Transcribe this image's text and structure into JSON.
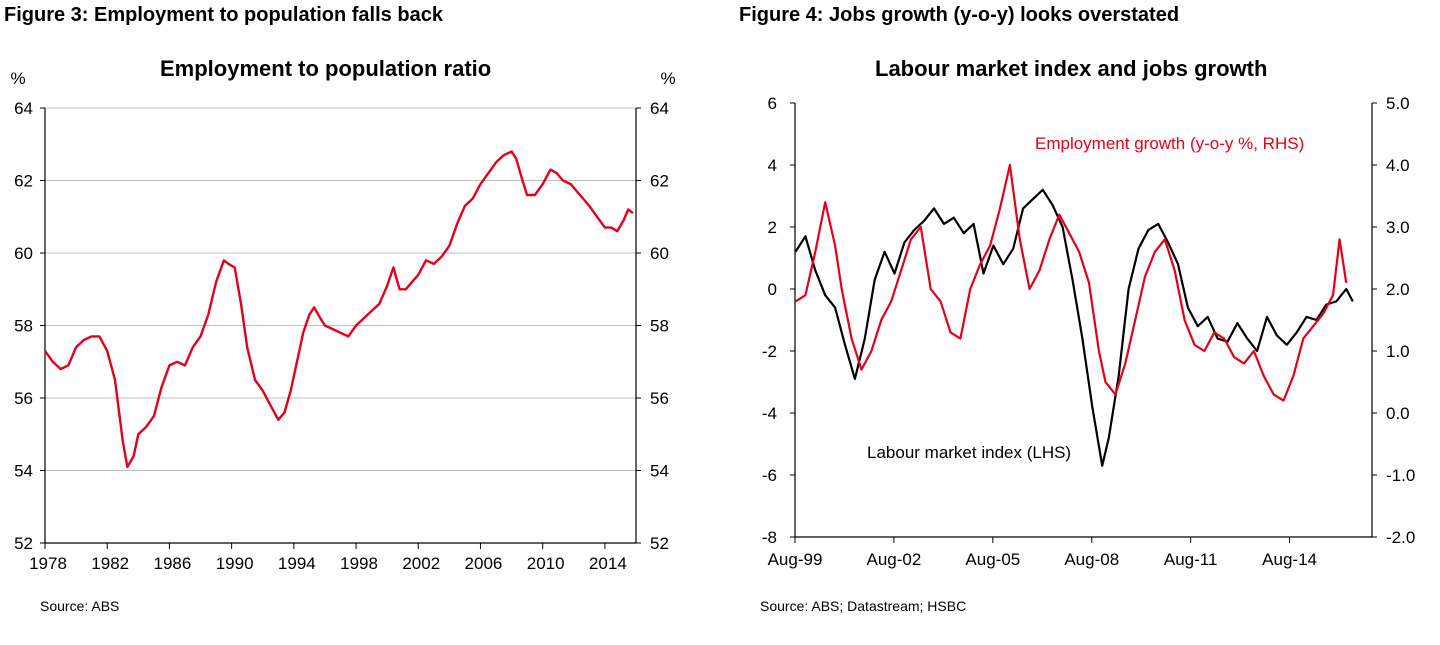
{
  "left": {
    "figure_title": "Figure 3: Employment to population falls back",
    "source": "Source: ABS"
  },
  "right": {
    "figure_title": "Figure 4: Jobs growth (y-o-y) looks overstated",
    "source": "Source: ABS; Datastream; HSBC"
  },
  "chart_data": [
    {
      "type": "line",
      "title": "Employment to population ratio",
      "y_unit_left": "%",
      "y_unit_right": "%",
      "ylim": [
        52,
        64
      ],
      "yticks": [
        52,
        54,
        56,
        58,
        60,
        62,
        64
      ],
      "xlim": [
        1978,
        2016
      ],
      "xticks": [
        1978,
        1982,
        1986,
        1990,
        1994,
        1998,
        2002,
        2006,
        2010,
        2014
      ],
      "grid": "horizontal",
      "colors": {
        "series": "#e3001b",
        "grid": "#bfbfbf",
        "axis": "#000000"
      },
      "series": [
        {
          "x": [
            1978.0,
            1978.5,
            1979.0,
            1979.5,
            1980.0,
            1980.5,
            1981.0,
            1981.5,
            1982.0,
            1982.5,
            1983.0,
            1983.3,
            1983.7,
            1984.0,
            1984.5,
            1985.0,
            1985.5,
            1986.0,
            1986.5,
            1987.0,
            1987.5,
            1988.0,
            1988.5,
            1989.0,
            1989.5,
            1989.8,
            1990.2,
            1990.6,
            1991.0,
            1991.5,
            1992.0,
            1992.5,
            1993.0,
            1993.4,
            1993.8,
            1994.2,
            1994.6,
            1995.0,
            1995.3,
            1995.7,
            1996.0,
            1996.5,
            1997.0,
            1997.5,
            1998.0,
            1998.5,
            1999.0,
            1999.5,
            2000.0,
            2000.4,
            2000.8,
            2001.2,
            2001.6,
            2002.0,
            2002.5,
            2003.0,
            2003.5,
            2004.0,
            2004.5,
            2005.0,
            2005.5,
            2006.0,
            2006.5,
            2007.0,
            2007.5,
            2008.0,
            2008.3,
            2008.7,
            2009.0,
            2009.5,
            2010.0,
            2010.5,
            2010.9,
            2011.3,
            2011.8,
            2012.2,
            2012.6,
            2013.0,
            2013.5,
            2014.0,
            2014.4,
            2014.8,
            2015.2,
            2015.5,
            2015.8
          ],
          "values": [
            57.3,
            57.0,
            56.8,
            56.9,
            57.4,
            57.6,
            57.7,
            57.7,
            57.3,
            56.5,
            54.8,
            54.1,
            54.4,
            55.0,
            55.2,
            55.5,
            56.3,
            56.9,
            57.0,
            56.9,
            57.4,
            57.7,
            58.3,
            59.2,
            59.8,
            59.7,
            59.6,
            58.6,
            57.4,
            56.5,
            56.2,
            55.8,
            55.4,
            55.6,
            56.2,
            57.0,
            57.8,
            58.3,
            58.5,
            58.2,
            58.0,
            57.9,
            57.8,
            57.7,
            58.0,
            58.2,
            58.4,
            58.6,
            59.1,
            59.6,
            59.0,
            59.0,
            59.2,
            59.4,
            59.8,
            59.7,
            59.9,
            60.2,
            60.8,
            61.3,
            61.5,
            61.9,
            62.2,
            62.5,
            62.7,
            62.8,
            62.6,
            62.0,
            61.6,
            61.6,
            61.9,
            62.3,
            62.2,
            62.0,
            61.9,
            61.7,
            61.5,
            61.3,
            61.0,
            60.7,
            60.7,
            60.6,
            60.9,
            61.2,
            61.1
          ]
        }
      ]
    },
    {
      "type": "line",
      "title": "Labour market index and jobs growth",
      "ylim_left": [
        -8,
        6
      ],
      "yticks_left": [
        -8,
        -6,
        -4,
        -2,
        0,
        2,
        4,
        6
      ],
      "ylim_right": [
        -2.0,
        5.0
      ],
      "yticks_right": [
        "-2.0",
        "-1.0",
        "0.0",
        "1.0",
        "2.0",
        "3.0",
        "4.0",
        "5.0"
      ],
      "xlim": [
        "Aug-99",
        "Feb-17"
      ],
      "xticks": [
        "Aug-99",
        "Aug-02",
        "Aug-05",
        "Aug-08",
        "Aug-11",
        "Aug-14"
      ],
      "grid": "none",
      "series": [
        {
          "name": "Labour market index (LHS)",
          "color": "#000000",
          "axis": "left",
          "x": [
            1999.6,
            1999.9,
            2000.2,
            2000.5,
            2000.8,
            2001.1,
            2001.4,
            2001.7,
            2002.0,
            2002.3,
            2002.6,
            2002.9,
            2003.2,
            2003.5,
            2003.8,
            2004.1,
            2004.4,
            2004.7,
            2005.0,
            2005.3,
            2005.6,
            2005.9,
            2006.2,
            2006.5,
            2006.8,
            2007.1,
            2007.4,
            2007.7,
            2008.0,
            2008.3,
            2008.6,
            2008.9,
            2009.1,
            2009.4,
            2009.7,
            2010.0,
            2010.3,
            2010.6,
            2010.9,
            2011.2,
            2011.5,
            2011.8,
            2012.1,
            2012.4,
            2012.7,
            2013.0,
            2013.3,
            2013.6,
            2013.9,
            2014.2,
            2014.5,
            2014.8,
            2015.1,
            2015.4,
            2015.7,
            2016.0,
            2016.3,
            2016.5
          ],
          "values": [
            1.2,
            1.7,
            0.6,
            -0.2,
            -0.6,
            -1.8,
            -2.9,
            -1.6,
            0.3,
            1.2,
            0.5,
            1.5,
            1.9,
            2.2,
            2.6,
            2.1,
            2.3,
            1.8,
            2.1,
            0.5,
            1.4,
            0.8,
            1.3,
            2.6,
            2.9,
            3.2,
            2.7,
            2.0,
            0.3,
            -1.6,
            -3.8,
            -5.7,
            -4.8,
            -2.8,
            0.0,
            1.3,
            1.9,
            2.1,
            1.5,
            0.8,
            -0.6,
            -1.2,
            -0.9,
            -1.6,
            -1.7,
            -1.1,
            -1.6,
            -2.0,
            -0.9,
            -1.5,
            -1.8,
            -1.4,
            -0.9,
            -1.0,
            -0.5,
            -0.4,
            0.0,
            -0.4
          ]
        },
        {
          "name": "Employment growth (y-o-y %, RHS)",
          "color": "#e3001b",
          "axis": "right",
          "x": [
            1999.6,
            1999.9,
            2000.2,
            2000.5,
            2000.8,
            2001.0,
            2001.3,
            2001.6,
            2001.9,
            2002.2,
            2002.5,
            2002.8,
            2003.1,
            2003.4,
            2003.7,
            2004.0,
            2004.3,
            2004.6,
            2004.9,
            2005.2,
            2005.5,
            2005.8,
            2006.1,
            2006.4,
            2006.7,
            2007.0,
            2007.3,
            2007.6,
            2007.9,
            2008.2,
            2008.5,
            2008.8,
            2009.0,
            2009.3,
            2009.6,
            2009.9,
            2010.2,
            2010.5,
            2010.8,
            2011.1,
            2011.4,
            2011.7,
            2012.0,
            2012.3,
            2012.6,
            2012.9,
            2013.2,
            2013.5,
            2013.8,
            2014.1,
            2014.4,
            2014.7,
            2015.0,
            2015.3,
            2015.6,
            2015.9,
            2016.1,
            2016.3
          ],
          "values": [
            1.8,
            1.9,
            2.6,
            3.4,
            2.7,
            2.0,
            1.2,
            0.7,
            1.0,
            1.5,
            1.8,
            2.3,
            2.8,
            3.0,
            2.0,
            1.8,
            1.3,
            1.2,
            2.0,
            2.4,
            2.7,
            3.3,
            4.0,
            2.8,
            2.0,
            2.3,
            2.8,
            3.2,
            2.9,
            2.6,
            2.1,
            1.0,
            0.5,
            0.3,
            0.8,
            1.5,
            2.2,
            2.6,
            2.8,
            2.3,
            1.5,
            1.1,
            1.0,
            1.3,
            1.2,
            0.9,
            0.8,
            1.0,
            0.6,
            0.3,
            0.2,
            0.6,
            1.2,
            1.4,
            1.6,
            1.9,
            2.8,
            2.1
          ]
        }
      ]
    }
  ]
}
